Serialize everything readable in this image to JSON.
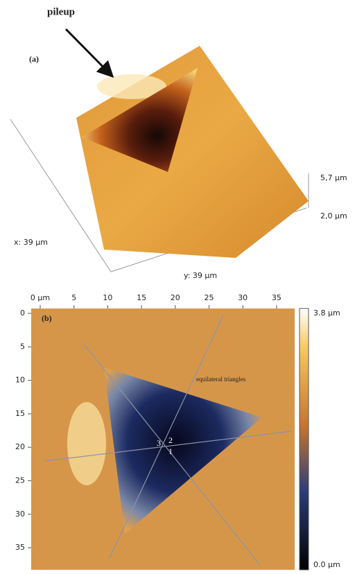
{
  "panel_a": {
    "label": "(a)",
    "annotation": "pileup",
    "z_labels": [
      "5,7 µm",
      "2,0 µm"
    ],
    "x_label": "x: 39 µm",
    "y_label": "y: 39 µm"
  },
  "panel_b": {
    "label": "(b)",
    "annotation": "equilateral triangles",
    "top_ticks": [
      "0 µm",
      "5",
      "10",
      "15",
      "20",
      "25",
      "30",
      "35"
    ],
    "left_ticks": [
      "0",
      "5",
      "10",
      "15",
      "20",
      "25",
      "30",
      "35"
    ],
    "point_labels": [
      "1",
      "2",
      "3"
    ],
    "colorbar_labels": [
      "3.8 µm",
      "0.0 µm"
    ]
  }
}
